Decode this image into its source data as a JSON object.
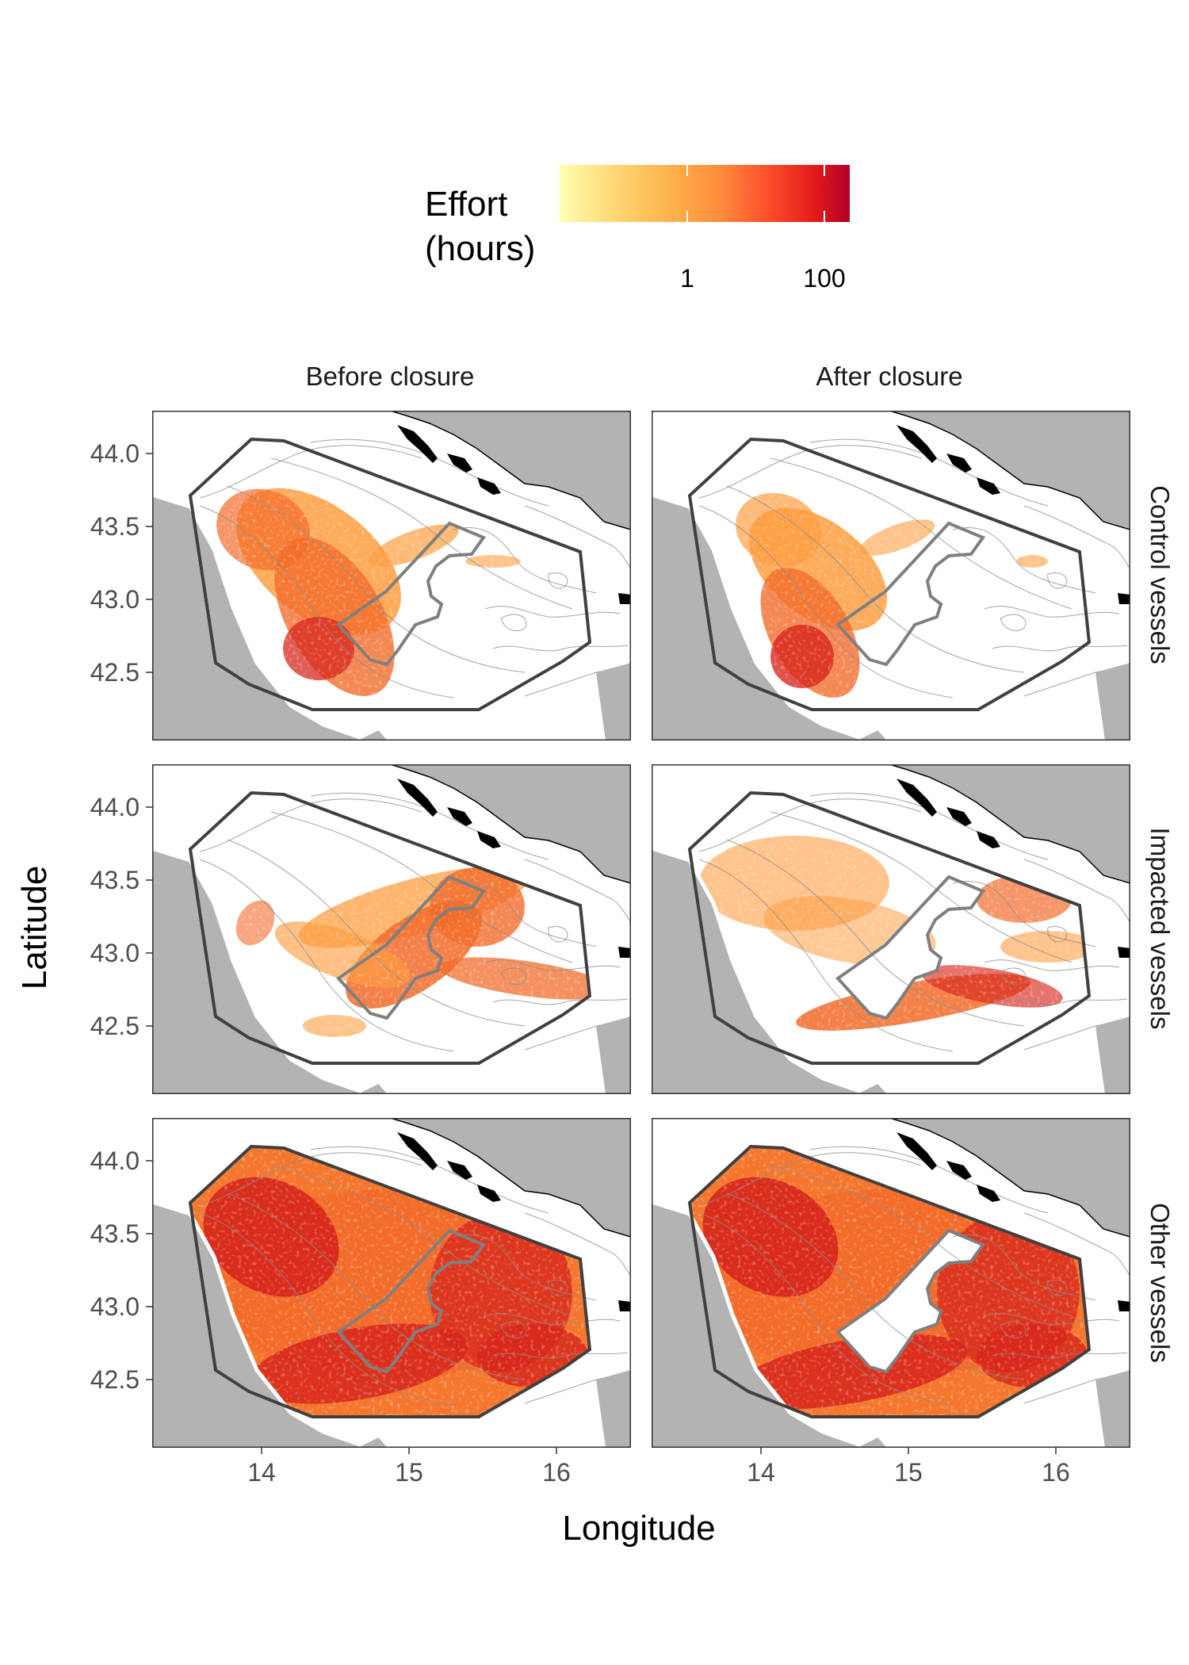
{
  "legend": {
    "title_line1": "Effort",
    "title_line2": "(hours)",
    "tick_labels": [
      "1",
      "100"
    ],
    "colors": [
      "#ffffb2",
      "#fed976",
      "#feb24c",
      "#fd8d3c",
      "#fc4e2a",
      "#e31a1c",
      "#b10026"
    ]
  },
  "facets": {
    "columns": [
      "Before closure",
      "After closure"
    ],
    "rows": [
      "Control vessels",
      "Impacted vessels",
      "Other vessels"
    ]
  },
  "axes": {
    "x_title": "Longitude",
    "y_title": "Latitude",
    "x_ticks": [
      "14",
      "15",
      "16"
    ],
    "y_ticks": [
      "44.0",
      "43.5",
      "43.0",
      "42.5"
    ]
  },
  "colors": {
    "land": "#b3b3b3",
    "study_area_outline": "#404040",
    "closure_outline": "#7f7f7f",
    "panel_border": "#333333",
    "low_effort": "#fd9d3f",
    "mid_effort": "#f26b2a",
    "high_effort": "#d7261c"
  }
}
